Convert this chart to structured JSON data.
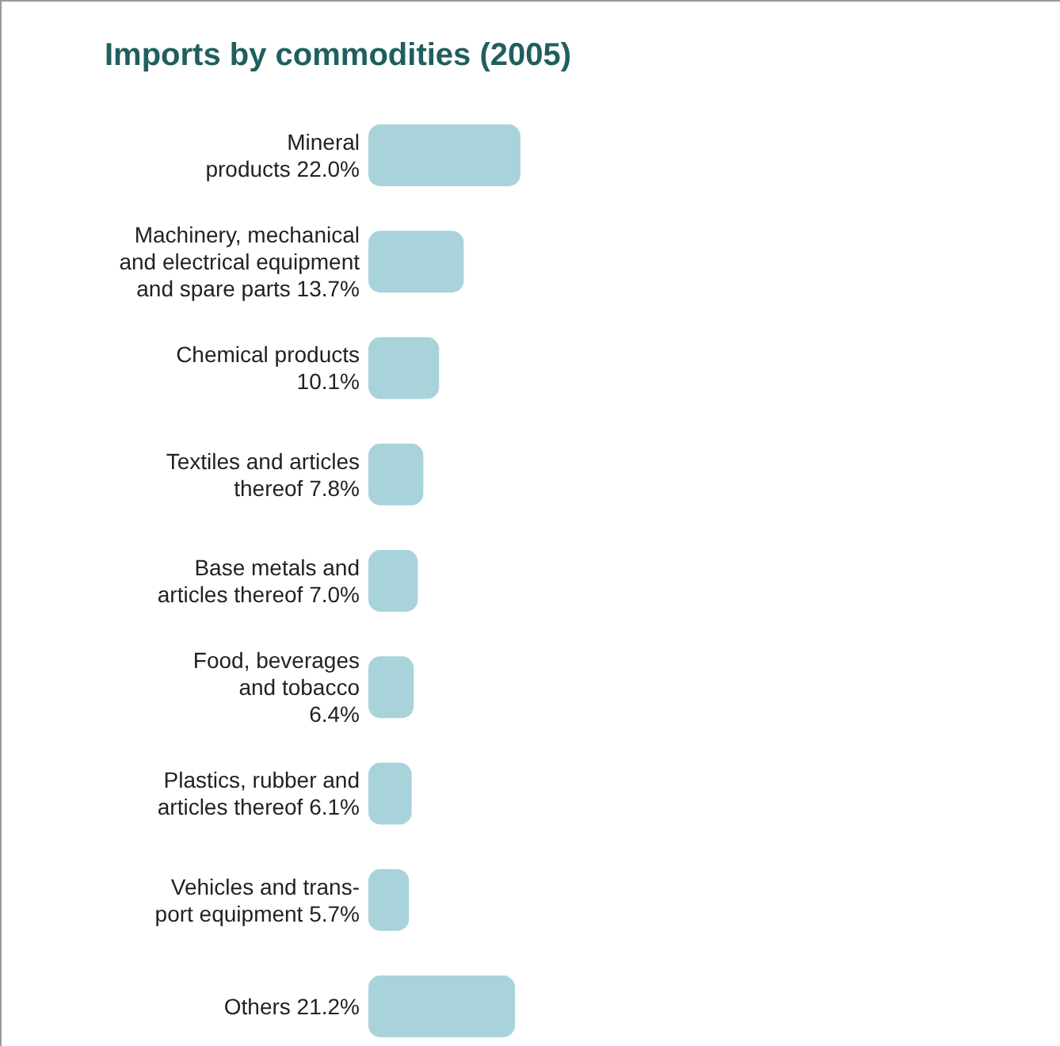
{
  "chart_data": {
    "type": "bar",
    "orientation": "horizontal",
    "title": "Imports by commodities (2005)",
    "categories": [
      "Mineral\nproducts",
      "Machinery, mechanical\nand electrical equipment\nand spare parts",
      "Chemical products\n",
      "Textiles and articles\nthereof",
      "Base metals and\narticles thereof",
      "Food, beverages\nand tobacco\n",
      "Plastics, rubber and\narticles thereof",
      "Vehicles and trans-\nport equipment",
      "Others"
    ],
    "values": [
      22.0,
      13.7,
      10.1,
      7.8,
      7.0,
      6.4,
      6.1,
      5.7,
      21.2
    ],
    "value_labels": [
      "22.0%",
      "13.7%",
      "10.1%",
      "7.8%",
      "7.0%",
      "6.4%",
      "6.1%",
      "5.7%",
      "21.2%"
    ],
    "color": "#a9d3db"
  }
}
